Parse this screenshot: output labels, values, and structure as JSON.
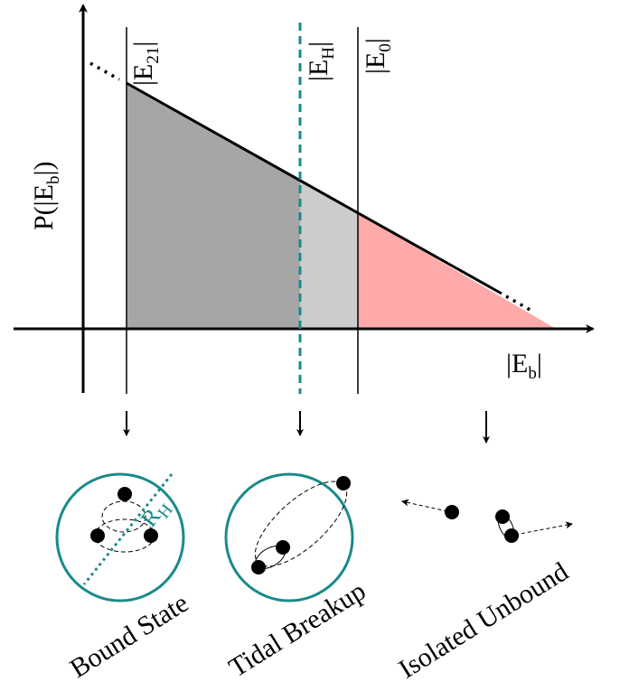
{
  "y_axis_label": {
    "start": "P(|E",
    "sub": "b",
    "end": "|)"
  },
  "x_axis_label": {
    "start": "|E",
    "sub": "b",
    "end": "|"
  },
  "markers": [
    {
      "start": "|E",
      "sub": "21",
      "end": "|"
    },
    {
      "start": "|E",
      "sub": "H",
      "end": "|"
    },
    {
      "start": "|E",
      "sub": "0",
      "end": "|"
    }
  ],
  "radius_label": {
    "start": "R",
    "sub": "H"
  },
  "panels": [
    "Bound State",
    "Tidal Breakup",
    "Isolated Unbound"
  ]
}
